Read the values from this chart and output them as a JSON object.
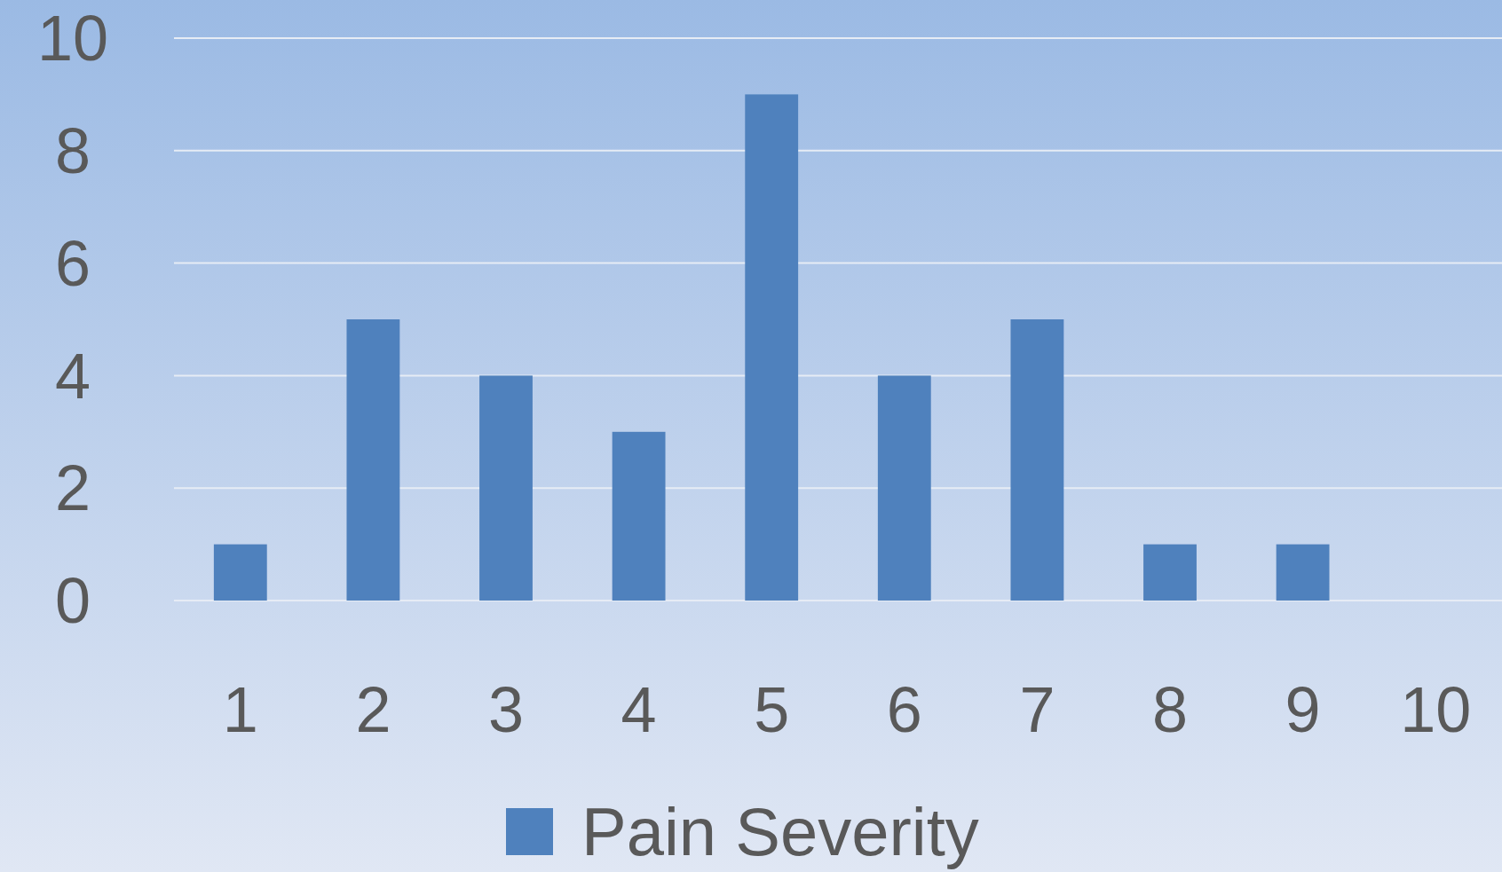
{
  "chart_data": {
    "type": "bar",
    "categories": [
      "1",
      "2",
      "3",
      "4",
      "5",
      "6",
      "7",
      "8",
      "9",
      "10"
    ],
    "series": [
      {
        "name": "Pain Severity",
        "color": "#4f81bd",
        "values": [
          1,
          5,
          4,
          3,
          9,
          4,
          5,
          1,
          1,
          0
        ]
      }
    ],
    "ylim": [
      0,
      10
    ],
    "yticks": [
      0,
      2,
      4,
      6,
      8,
      10
    ],
    "grid": "y",
    "legend": "bottom"
  }
}
